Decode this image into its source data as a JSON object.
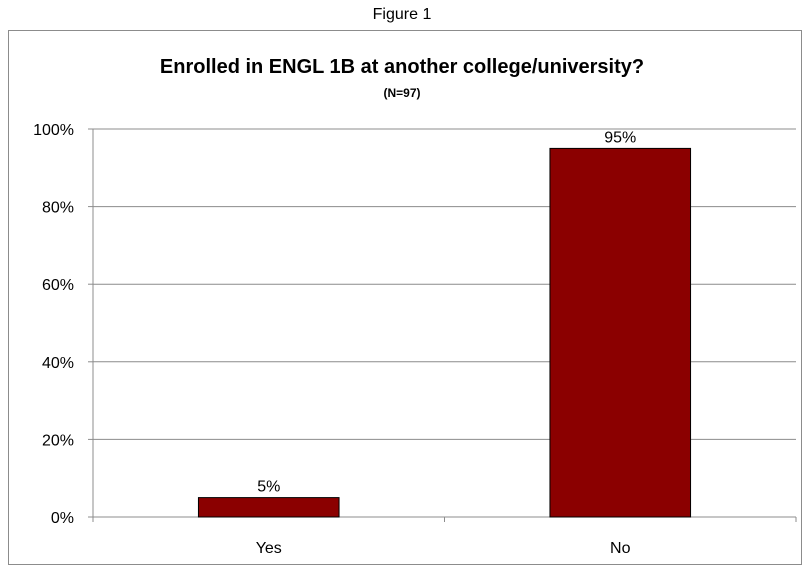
{
  "figure_caption": "Figure 1",
  "chart_data": {
    "type": "bar",
    "title": "Enrolled in ENGL 1B at another college/university?",
    "subtitle": "(N=97)",
    "categories": [
      "Yes",
      "No"
    ],
    "values": [
      5,
      95
    ],
    "data_labels": [
      "5%",
      "95%"
    ],
    "xlabel": "",
    "ylabel": "",
    "ylim": [
      0,
      100
    ],
    "yticks": [
      0,
      20,
      40,
      60,
      80,
      100
    ],
    "ytick_labels": [
      "0%",
      "20%",
      "40%",
      "60%",
      "80%",
      "100%"
    ],
    "grid": true,
    "legend": "none",
    "colors": {
      "bar": "#8B0000",
      "bar_border": "#000000",
      "grid": "#8c8c8c"
    }
  }
}
